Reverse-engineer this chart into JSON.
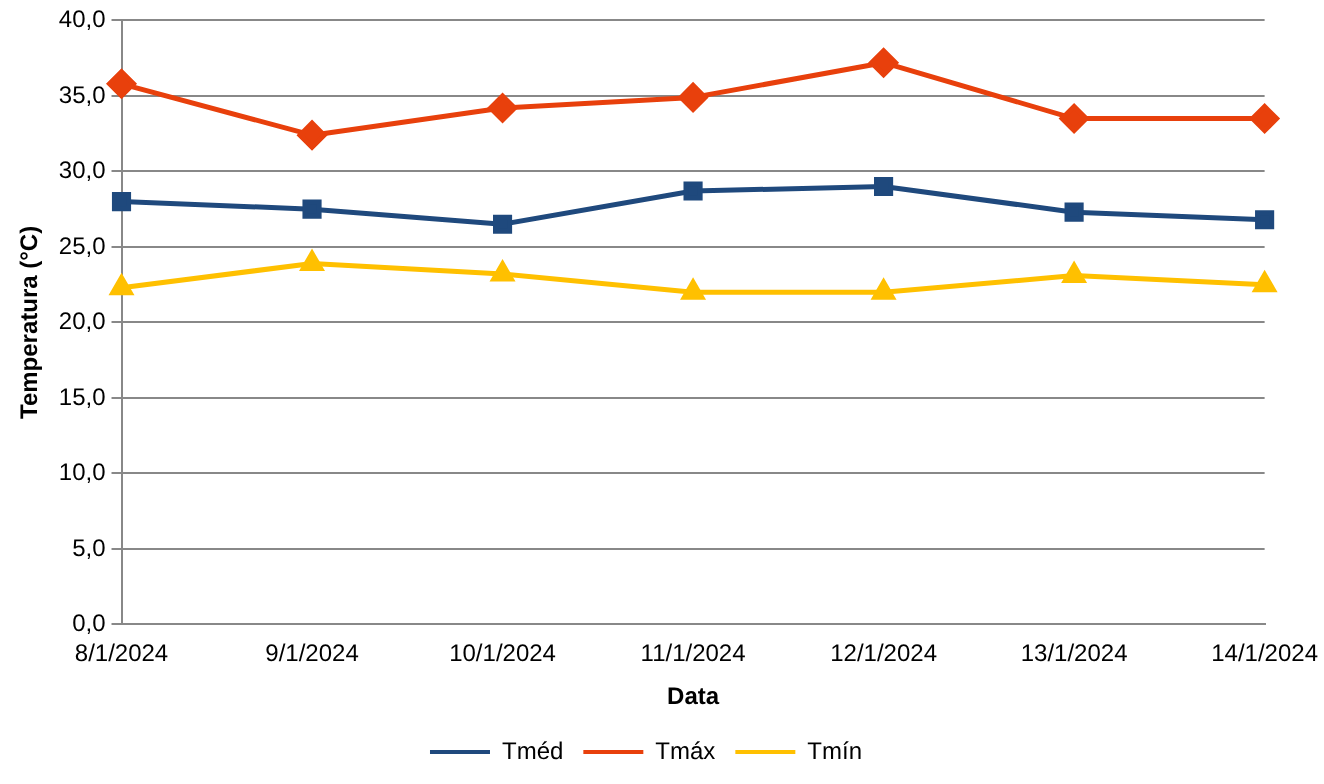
{
  "chart_data": {
    "type": "line",
    "xlabel": "Data",
    "ylabel": "Temperatura (°C)",
    "categories": [
      "8/1/2024",
      "9/1/2024",
      "10/1/2024",
      "11/1/2024",
      "12/1/2024",
      "13/1/2024",
      "14/1/2024"
    ],
    "series": [
      {
        "name": "Tméd",
        "color": "#1f497d",
        "marker": "square",
        "values": [
          28.0,
          27.5,
          26.5,
          28.7,
          29.0,
          27.3,
          26.8
        ]
      },
      {
        "name": "Tmáx",
        "color": "#e8400c",
        "marker": "diamond",
        "values": [
          35.8,
          32.4,
          34.2,
          34.9,
          37.2,
          33.5,
          33.5
        ]
      },
      {
        "name": "Tmín",
        "color": "#ffc000",
        "marker": "triangle",
        "values": [
          22.3,
          23.9,
          23.2,
          22.0,
          22.0,
          23.1,
          22.5
        ]
      }
    ],
    "ylim": [
      0,
      40
    ],
    "yticks": [
      {
        "value": 0,
        "label": "0,0"
      },
      {
        "value": 5,
        "label": "5,0"
      },
      {
        "value": 10,
        "label": "10,0"
      },
      {
        "value": 15,
        "label": "15,0"
      },
      {
        "value": 20,
        "label": "20,0"
      },
      {
        "value": 25,
        "label": "25,0"
      },
      {
        "value": 30,
        "label": "30,0"
      },
      {
        "value": 35,
        "label": "35,0"
      },
      {
        "value": 40,
        "label": "40,0"
      }
    ],
    "grid": "y",
    "legend": "bottom",
    "line_style": "solid"
  }
}
